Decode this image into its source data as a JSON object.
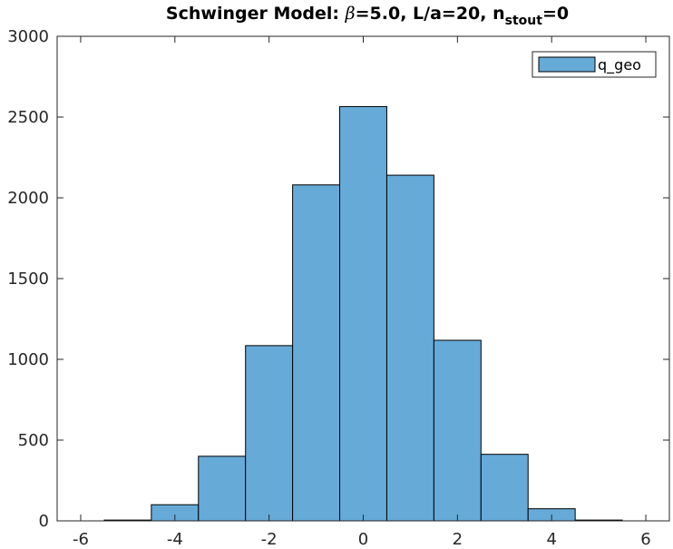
{
  "chart_data": {
    "type": "bar",
    "title": {
      "prefix": "Schwinger Model: ",
      "beta_symbol": "β",
      "beta_value": "=5.0, L/a=20, n",
      "subscript": "stout",
      "suffix": "=0"
    },
    "xlabel": "",
    "ylabel": "",
    "xlim": [
      -6.5,
      6.5
    ],
    "ylim": [
      0,
      3000
    ],
    "xticks": [
      -6,
      -4,
      -2,
      0,
      2,
      4,
      6
    ],
    "yticks": [
      0,
      500,
      1000,
      1500,
      2000,
      2500,
      3000
    ],
    "bin_width": 1,
    "legend_position": "top-right",
    "grid": false,
    "bar_color": "#66aad8",
    "edge_color": "#000000",
    "series": [
      {
        "name": "q_geo",
        "categories": [
          -5,
          -4,
          -3,
          -2,
          -1,
          0,
          1,
          2,
          3,
          4,
          5
        ],
        "values": [
          5,
          100,
          400,
          1085,
          2080,
          2565,
          2140,
          1118,
          412,
          75,
          5
        ]
      }
    ]
  }
}
